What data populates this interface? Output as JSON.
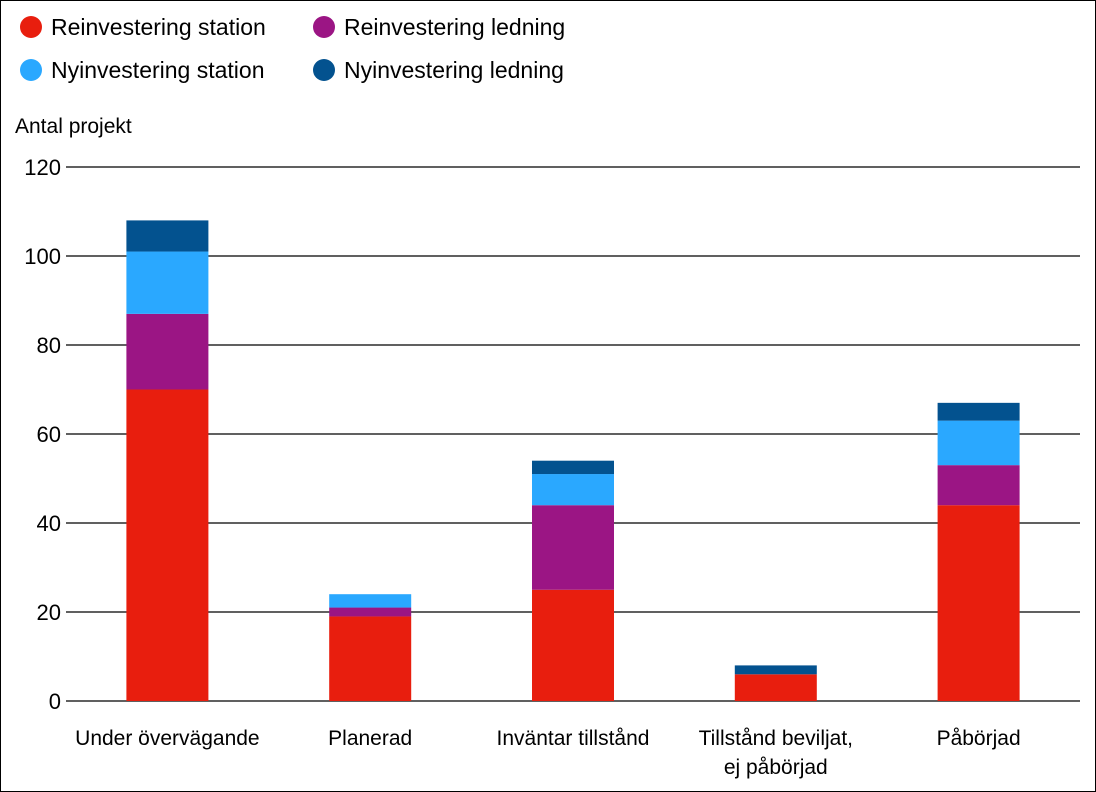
{
  "chart_data": {
    "type": "bar",
    "stacked": true,
    "ylabel": "Antal projekt",
    "ylim": [
      0,
      120
    ],
    "yticks": [
      0,
      20,
      40,
      60,
      80,
      100,
      120
    ],
    "grid": true,
    "legend_position": "top-left",
    "categories": [
      [
        "Under övervägande"
      ],
      [
        "Planerad"
      ],
      [
        "Inväntar tillstånd"
      ],
      [
        "Tillstånd beviljat,",
        "ej påbörjad"
      ],
      [
        "Påbörjad"
      ]
    ],
    "series": [
      {
        "name": "Reinvestering station",
        "color": "#e81e0e",
        "values": [
          70,
          19,
          25,
          6,
          44
        ]
      },
      {
        "name": "Reinvestering ledning",
        "color": "#9b1584",
        "values": [
          17,
          2,
          19,
          0,
          9
        ]
      },
      {
        "name": "Nyinvestering station",
        "color": "#2aa8ff",
        "values": [
          14,
          3,
          7,
          0,
          10
        ]
      },
      {
        "name": "Nyinvestering ledning",
        "color": "#03528f",
        "values": [
          7,
          0,
          3,
          2,
          4
        ]
      }
    ]
  }
}
